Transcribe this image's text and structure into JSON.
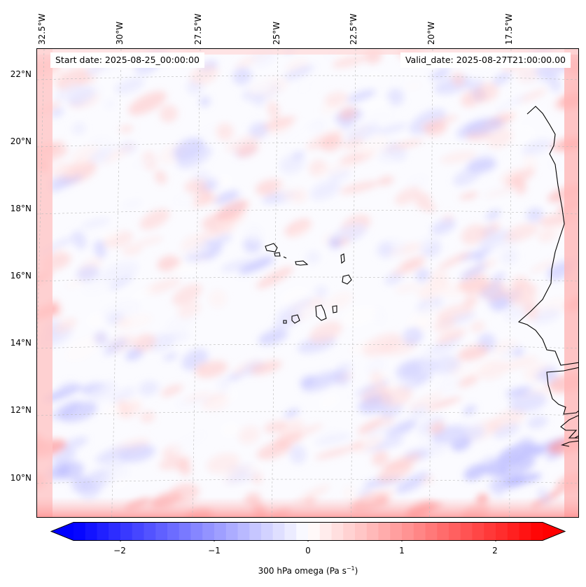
{
  "map": {
    "start_date": "Start date: 2025-08-25_00:00:00",
    "valid_date": "Valid_date: 2025-08-27T21:00:00.00",
    "lon_labels": [
      "32.5°W",
      "30°W",
      "27.5°W",
      "25°W",
      "22.5°W",
      "20°W",
      "17.5°W"
    ],
    "lat_labels": [
      "22°N",
      "20°N",
      "18°N",
      "16°N",
      "14°N",
      "12°N",
      "10°N"
    ]
  },
  "colorbar": {
    "label": "300 hPa omega (Pa s",
    "label_sup": "−1",
    "label_end": ")",
    "ticks": [
      "−2",
      "−1",
      "0",
      "1",
      "2"
    ],
    "tick_values": [
      -2,
      -1,
      0,
      1,
      2
    ],
    "range": [
      -2.5,
      2.5
    ],
    "extend": "both",
    "colormap": "bwr",
    "colors": {
      "low": "#0000ff",
      "mid": "#ffffff",
      "high": "#ff0000"
    }
  }
}
